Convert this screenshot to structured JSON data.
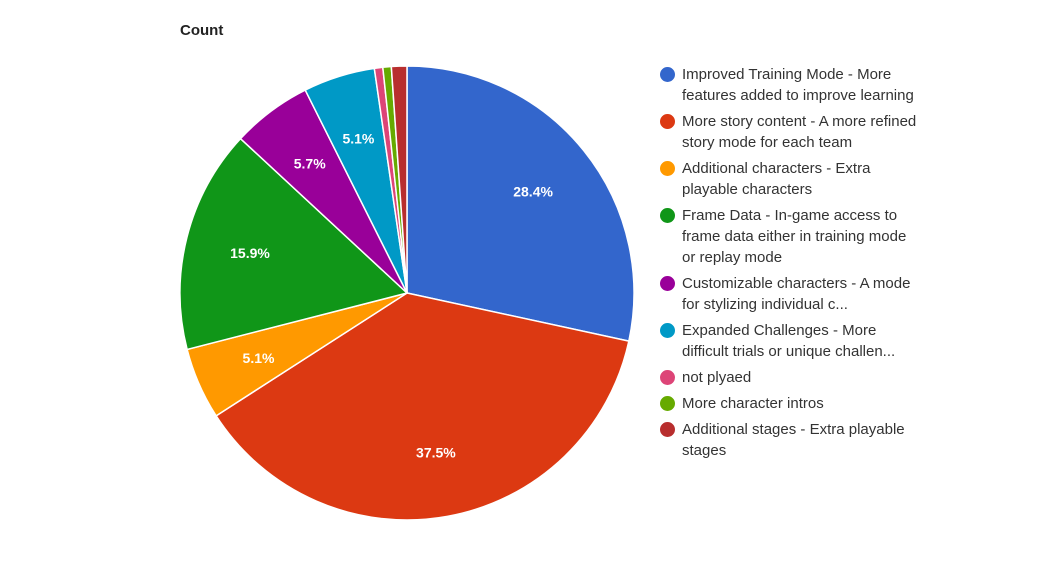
{
  "chart_data": {
    "type": "pie",
    "title": "Count",
    "start_angle_deg": 0,
    "direction": "clockwise",
    "legend_position": "right",
    "slices": [
      {
        "label": "Improved Training Mode - More features added to improve learning",
        "value": 28.4,
        "display": "28.4%",
        "color": "#3366cc"
      },
      {
        "label": "More story content - A more refined story mode for each team",
        "value": 37.5,
        "display": "37.5%",
        "color": "#dc3912"
      },
      {
        "label": "Additional characters - Extra playable characters",
        "value": 5.1,
        "display": "5.1%",
        "color": "#ff9900"
      },
      {
        "label": "Frame Data - In-game access to frame data either in training mode or replay mode",
        "value": 15.9,
        "display": "15.9%",
        "color": "#109618"
      },
      {
        "label": "Customizable characters - A mode for stylizing individual c...",
        "value": 5.7,
        "display": "5.7%",
        "color": "#990099"
      },
      {
        "label": "Expanded Challenges - More difficult trials or unique challen...",
        "value": 5.1,
        "display": "5.1%",
        "color": "#0099c6"
      },
      {
        "label": "not plyaed",
        "value": 0.6,
        "display": "",
        "color": "#dd4477"
      },
      {
        "label": "More character intros",
        "value": 0.6,
        "display": "",
        "color": "#66aa00"
      },
      {
        "label": "Additional stages - Extra playable stages",
        "value": 1.1,
        "display": "",
        "color": "#b82e2e"
      }
    ]
  }
}
